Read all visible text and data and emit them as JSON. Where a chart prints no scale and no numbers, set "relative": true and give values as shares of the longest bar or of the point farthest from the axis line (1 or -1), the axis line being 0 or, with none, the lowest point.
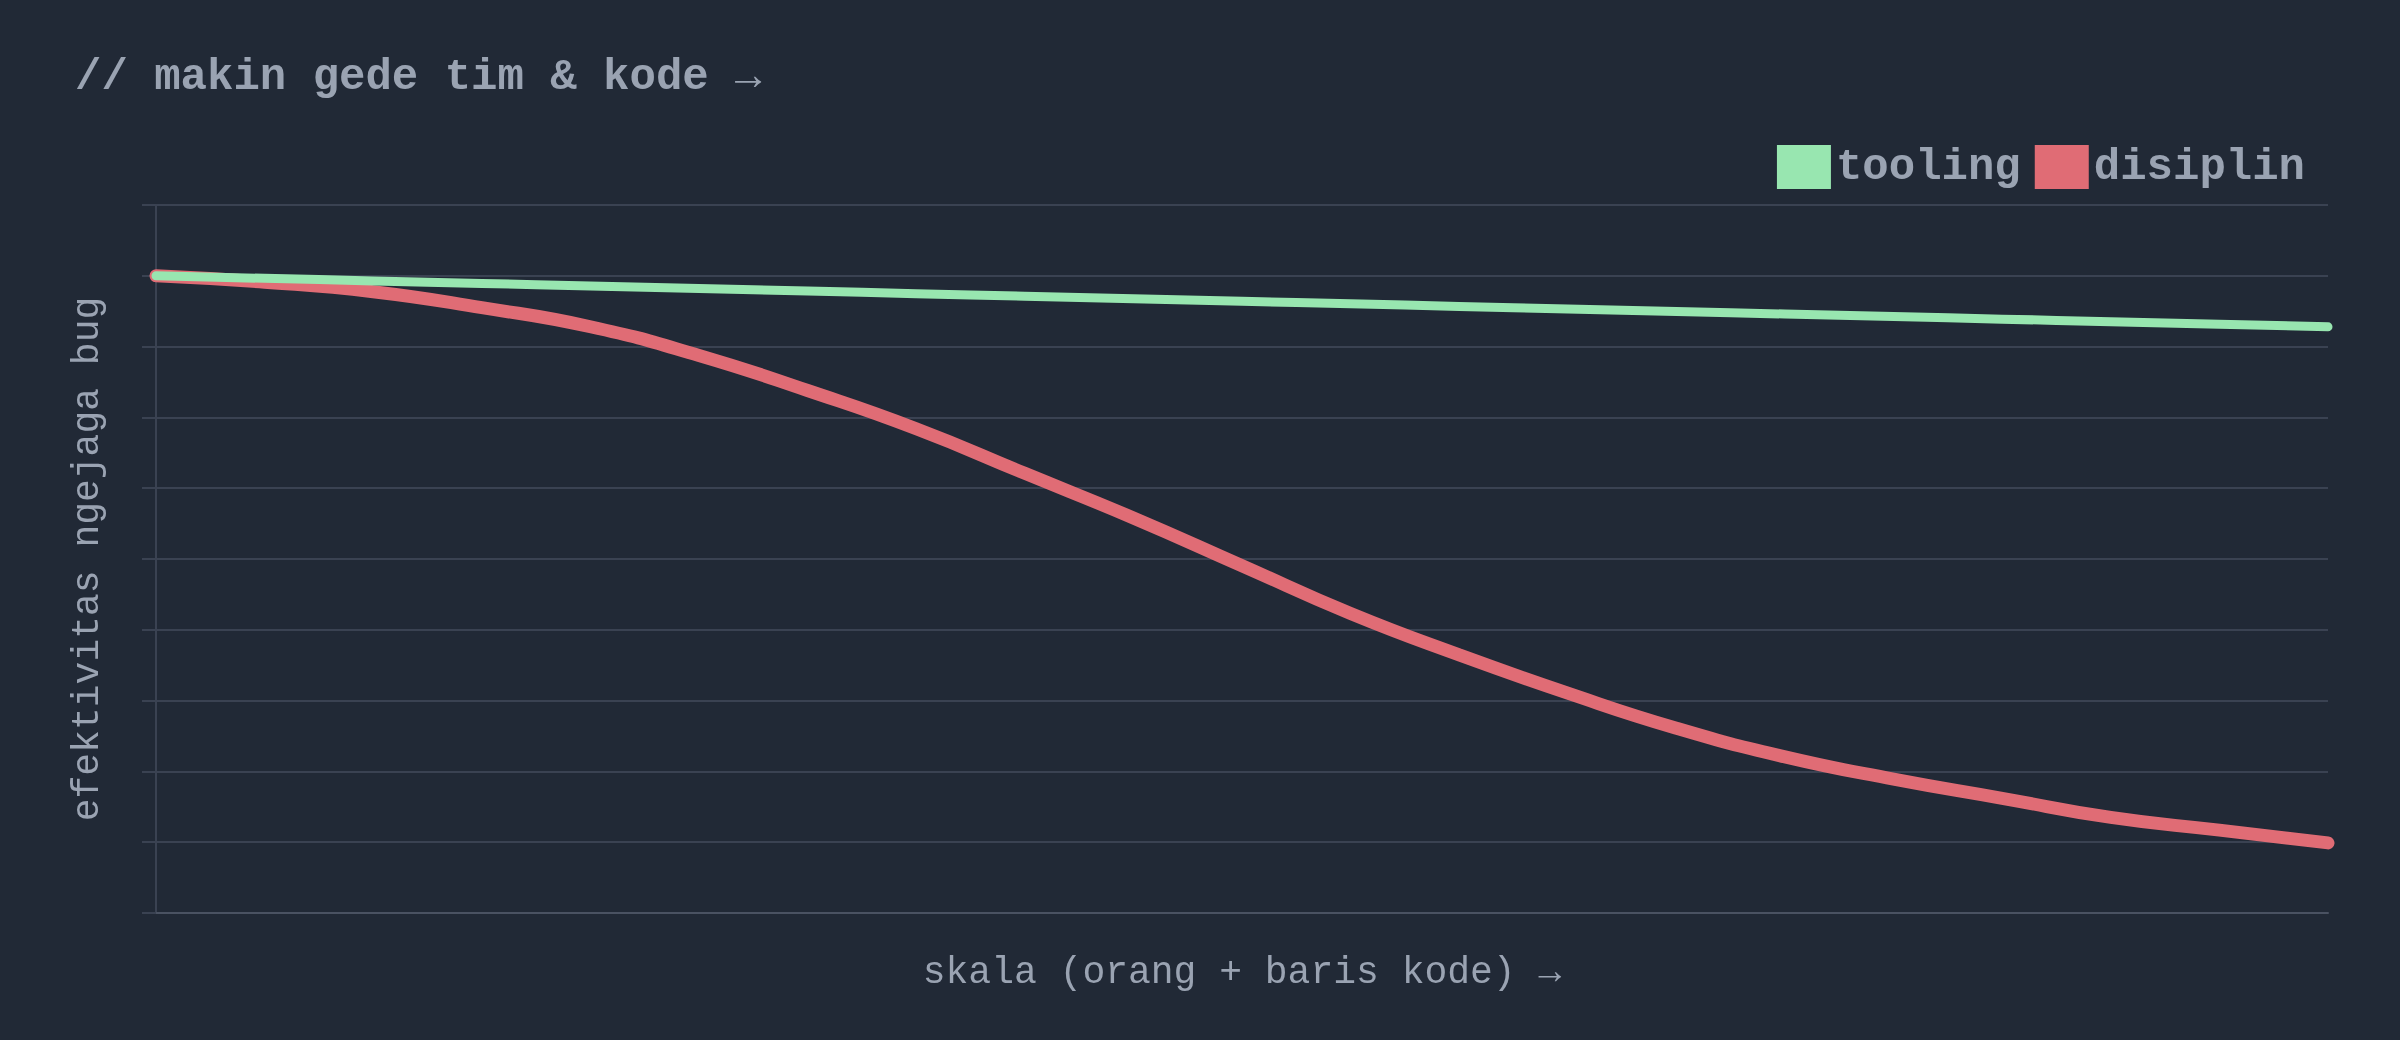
{
  "chart_data": {
    "type": "line",
    "title": "// makin gede tim & kode →",
    "xlabel": "skala (orang + baris kode) →",
    "ylabel": "efektivitas ngejaga bug",
    "relative": true,
    "grid": "y",
    "legend": "top right",
    "line_style": "solid",
    "categories": [
      null,
      null,
      null,
      null,
      null,
      null,
      null,
      null,
      null,
      null,
      null,
      null,
      null,
      null,
      null,
      null,
      null,
      null,
      null,
      null,
      null
    ],
    "series": [
      {
        "name": "tooling",
        "color": "#98e6b0",
        "values": [
          1.0,
          0.996,
          0.992,
          0.988,
          0.984,
          0.98,
          0.976,
          0.972,
          0.968,
          0.964,
          0.96,
          0.956,
          0.952,
          0.948,
          0.944,
          0.94,
          0.936,
          0.932,
          0.928,
          0.924,
          0.92
        ]
      },
      {
        "name": "disiplin",
        "color": "#e06c75",
        "values": [
          1.0,
          0.99,
          0.975,
          0.95,
          0.92,
          0.875,
          0.82,
          0.76,
          0.69,
          0.62,
          0.545,
          0.47,
          0.405,
          0.345,
          0.29,
          0.245,
          0.21,
          0.18,
          0.15,
          0.13,
          0.11
        ]
      }
    ]
  }
}
